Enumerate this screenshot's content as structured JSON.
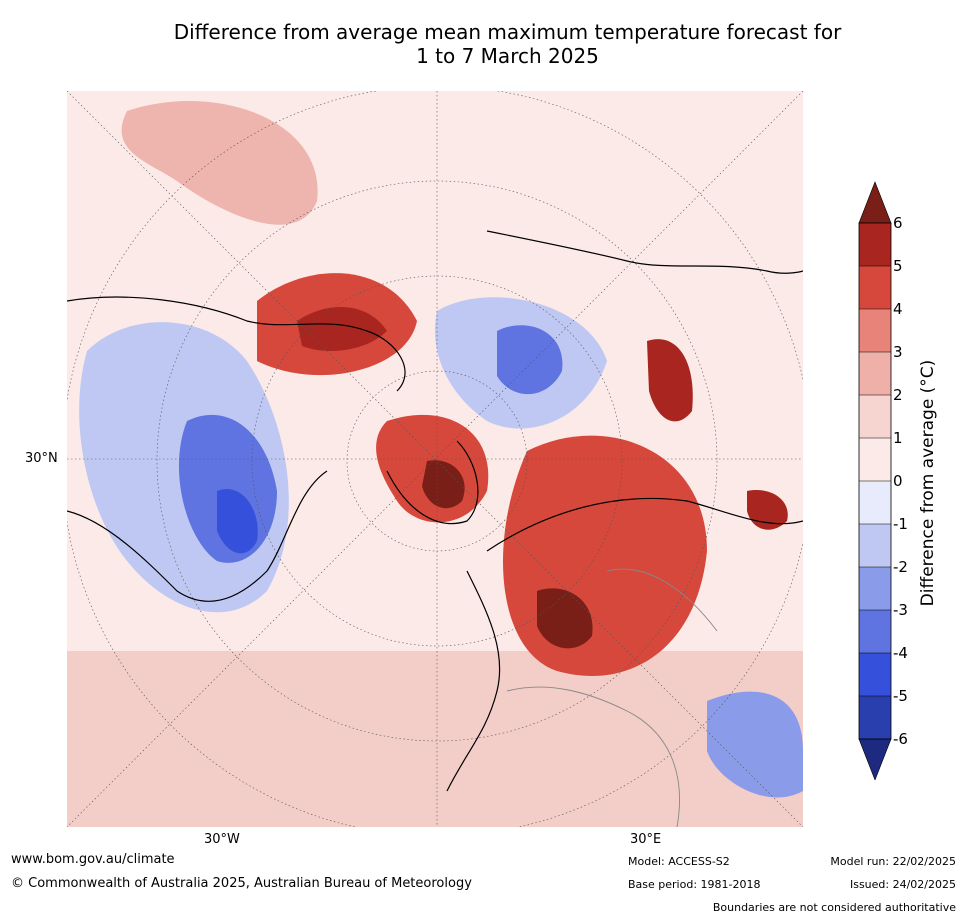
{
  "title_line1": "Difference from average mean maximum temperature forecast for",
  "title_line2": "1 to 7 March 2025",
  "map": {
    "lat_label_30n": "30°N",
    "lon_label_30w": "30°W",
    "lon_label_30e": "30°E"
  },
  "colorbar": {
    "label": "Difference from average (°C)",
    "ticks": [
      "6",
      "5",
      "4",
      "3",
      "2",
      "1",
      "0",
      "-1",
      "-2",
      "-3",
      "-4",
      "-5",
      "-6"
    ],
    "colors": [
      "#7a1f17",
      "#a8261f",
      "#d6483c",
      "#e8837a",
      "#efb0a9",
      "#f6d5d1",
      "#fbeae7",
      "#e7ebfb",
      "#bfc8f2",
      "#8a9bea",
      "#5f74e0",
      "#3551db",
      "#2a3fae",
      "#1e2a80"
    ]
  },
  "footer": {
    "website": "www.bom.gov.au/climate",
    "copyright": "© Commonwealth of Australia 2025, Australian Bureau of Meteorology",
    "model": "Model: ACCESS-S2",
    "base_period": "Base period: 1981-2018",
    "model_run": "Model run: 22/02/2025",
    "issued": "Issued: 24/02/2025",
    "disclaimer": "Boundaries are not considered authoritative"
  }
}
